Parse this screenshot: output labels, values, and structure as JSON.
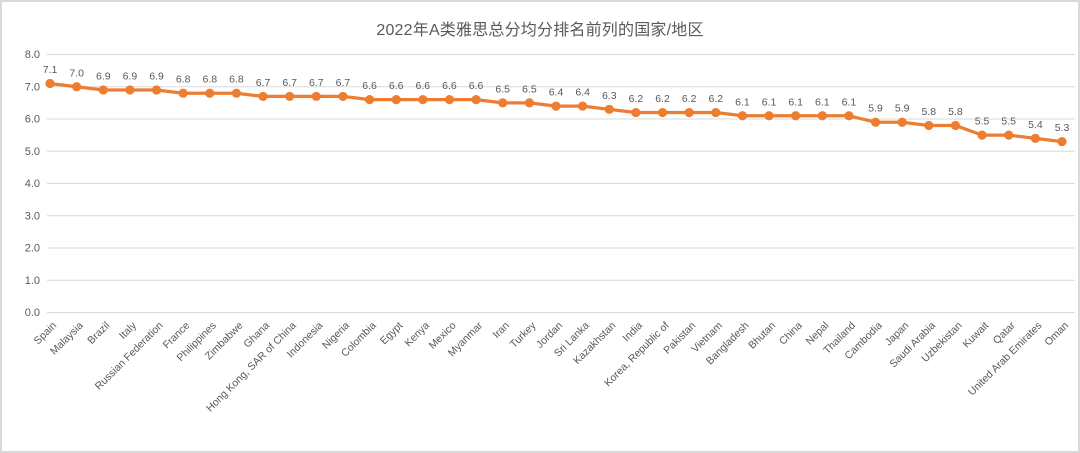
{
  "window": {
    "background": "#ffffff",
    "border_color": "#d9d9d9"
  },
  "chart_data": {
    "type": "line",
    "title": "2022年A类雅思总分均分排名前列的国家/地区",
    "categories": [
      "Spain",
      "Malaysia",
      "Brazil",
      "Italy",
      "Russian Federation",
      "France",
      "Philippines",
      "Zimbabwe",
      "Ghana",
      "Hong Kong, SAR of China",
      "Indonesia",
      "Nigeria",
      "Colombia",
      "Egypt",
      "Kenya",
      "Mexico",
      "Myanmar",
      "Iran",
      "Turkey",
      "Jordan",
      "Sri Lanka",
      "Kazakhstan",
      "India",
      "Korea, Republic of",
      "Pakistan",
      "Vietnam",
      "Bangladesh",
      "Bhutan",
      "China",
      "Nepal",
      "Thailand",
      "Cambodia",
      "Japan",
      "Saudi Arabia",
      "Uzbekistan",
      "Kuwait",
      "Qatar",
      "United Arab Emirates",
      "Oman"
    ],
    "values": [
      7.1,
      7.0,
      6.9,
      6.9,
      6.9,
      6.8,
      6.8,
      6.8,
      6.7,
      6.7,
      6.7,
      6.7,
      6.6,
      6.6,
      6.6,
      6.6,
      6.6,
      6.5,
      6.5,
      6.4,
      6.4,
      6.3,
      6.2,
      6.2,
      6.2,
      6.2,
      6.1,
      6.1,
      6.1,
      6.1,
      6.1,
      5.9,
      5.9,
      5.8,
      5.8,
      5.5,
      5.5,
      5.4,
      5.3
    ],
    "data_labels": [
      "7.1",
      "7.0",
      "6.9",
      "6.9",
      "6.9",
      "6.8",
      "6.8",
      "6.8",
      "6.7",
      "6.7",
      "6.7",
      "6.7",
      "6.6",
      "6.6",
      "6.6",
      "6.6",
      "6.6",
      "6.5",
      "6.5",
      "6.4",
      "6.4",
      "6.3",
      "6.2",
      "6.2",
      "6.2",
      "6.2",
      "6.1",
      "6.1",
      "6.1",
      "6.1",
      "6.1",
      "5.9",
      "5.9",
      "5.8",
      "5.8",
      "5.5",
      "5.5",
      "5.4",
      "5.3"
    ],
    "xlabel": "",
    "ylabel": "",
    "ylim": [
      0.0,
      8.0
    ],
    "ytick_step": 1.0,
    "ytick_labels": [
      "8.0",
      "7.0",
      "6.0",
      "5.0",
      "4.0",
      "3.0",
      "2.0",
      "1.0",
      "0.0"
    ],
    "grid": true,
    "legend": "none",
    "line_color": "#ED7D31",
    "marker": "circle",
    "marker_color": "#ED7D31",
    "gridline_color": "#D9D9D9",
    "text_color": "#595959",
    "title_color": "#595959"
  }
}
